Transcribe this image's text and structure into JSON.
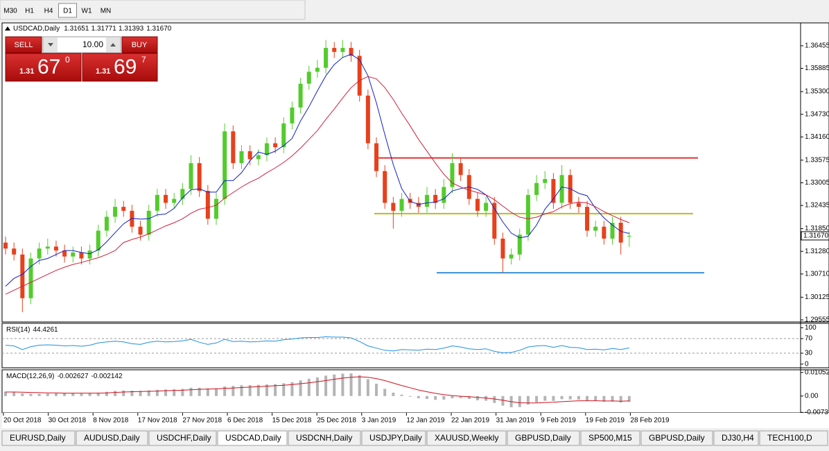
{
  "toolbar": {
    "timeframes": [
      "M30",
      "H1",
      "H4",
      "D1",
      "W1",
      "MN"
    ],
    "active": 3
  },
  "chart_data": {
    "type": "candlestick",
    "symbol": "USDCAD,Daily",
    "open": [
      1.315,
      1.3135,
      1.312,
      1.301,
      1.311,
      1.3135,
      1.314,
      1.313,
      1.3115,
      1.3125,
      1.311,
      1.313,
      1.318,
      1.3215,
      1.324,
      1.323,
      1.319,
      1.317,
      1.323,
      1.327,
      1.325,
      1.326,
      1.3285,
      1.335,
      1.328,
      1.321,
      1.326,
      1.343,
      1.335,
      1.338,
      1.336,
      1.337,
      1.34,
      1.339,
      1.345,
      1.349,
      1.355,
      1.358,
      1.359,
      1.364,
      1.363,
      1.364,
      1.362,
      1.352,
      1.34,
      1.333,
      1.325,
      1.323,
      1.326,
      1.325,
      1.324,
      1.327,
      1.325,
      1.329,
      1.335,
      1.332,
      1.326,
      1.323,
      1.325,
      1.316,
      1.311,
      1.312,
      1.317,
      1.327,
      1.33,
      1.331,
      1.325,
      1.332,
      1.325,
      1.324,
      1.318,
      1.319,
      1.316,
      1.32,
      1.31651
    ],
    "high": [
      1.3165,
      1.315,
      1.3135,
      1.3125,
      1.315,
      1.316,
      1.3155,
      1.3145,
      1.314,
      1.314,
      1.3145,
      1.3195,
      1.323,
      1.326,
      1.3255,
      1.3245,
      1.3205,
      1.3245,
      1.3285,
      1.3285,
      1.3275,
      1.33,
      1.337,
      1.3365,
      1.3295,
      1.3275,
      1.345,
      1.3445,
      1.3395,
      1.3395,
      1.3385,
      1.3415,
      1.3415,
      1.3465,
      1.3505,
      1.3565,
      1.3595,
      1.361,
      1.366,
      1.3655,
      1.366,
      1.3655,
      1.3635,
      1.3535,
      1.3415,
      1.3345,
      1.3265,
      1.3275,
      1.3275,
      1.3265,
      1.329,
      1.3285,
      1.331,
      1.3375,
      1.3365,
      1.3335,
      1.3275,
      1.3265,
      1.3265,
      1.3175,
      1.3135,
      1.3185,
      1.3285,
      1.332,
      1.333,
      1.3325,
      1.3345,
      1.3335,
      1.3265,
      1.3255,
      1.3205,
      1.3205,
      1.3215,
      1.3215,
      1.31771
    ],
    "low": [
      1.312,
      1.3105,
      1.2975,
      1.2995,
      1.3095,
      1.312,
      1.3115,
      1.31,
      1.31,
      1.3095,
      1.3095,
      1.3115,
      1.3165,
      1.32,
      1.3215,
      1.3175,
      1.3155,
      1.3155,
      1.3215,
      1.3235,
      1.3235,
      1.3245,
      1.327,
      1.3265,
      1.3195,
      1.3195,
      1.3245,
      1.3335,
      1.3335,
      1.3345,
      1.3345,
      1.3355,
      1.3375,
      1.3375,
      1.3435,
      1.3475,
      1.3535,
      1.3565,
      1.3575,
      1.3615,
      1.3615,
      1.3605,
      1.3505,
      1.3385,
      1.3315,
      1.3235,
      1.3185,
      1.3215,
      1.3235,
      1.3225,
      1.3225,
      1.3235,
      1.3235,
      1.3275,
      1.3305,
      1.3245,
      1.3215,
      1.3215,
      1.3145,
      1.3075,
      1.3095,
      1.3105,
      1.3155,
      1.3255,
      1.3285,
      1.3235,
      1.3235,
      1.3235,
      1.3225,
      1.3165,
      1.3165,
      1.3145,
      1.3145,
      1.312,
      1.31393
    ],
    "close": [
      1.3135,
      1.312,
      1.301,
      1.311,
      1.3135,
      1.314,
      1.313,
      1.3115,
      1.3125,
      1.311,
      1.313,
      1.318,
      1.3215,
      1.324,
      1.323,
      1.319,
      1.317,
      1.323,
      1.327,
      1.325,
      1.326,
      1.3285,
      1.335,
      1.328,
      1.321,
      1.326,
      1.343,
      1.335,
      1.338,
      1.336,
      1.337,
      1.34,
      1.339,
      1.345,
      1.349,
      1.355,
      1.358,
      1.359,
      1.364,
      1.363,
      1.364,
      1.362,
      1.352,
      1.34,
      1.333,
      1.325,
      1.323,
      1.326,
      1.325,
      1.324,
      1.327,
      1.325,
      1.329,
      1.335,
      1.332,
      1.326,
      1.323,
      1.325,
      1.316,
      1.311,
      1.312,
      1.317,
      1.327,
      1.33,
      1.331,
      1.325,
      1.332,
      1.325,
      1.324,
      1.318,
      1.319,
      1.316,
      1.32,
      1.315,
      1.3167
    ],
    "bull_color": "#52cc2c",
    "bear_color": "#e8401c",
    "ylim": [
      1.2952,
      1.3703
    ],
    "yticks": [
      1.36455,
      1.35885,
      {
        "value": 1.353,
        "label": "1.35300"
      },
      {
        "value": 1.3473,
        "label": "1.34730"
      },
      {
        "value": 1.3416,
        "label": "1.34160"
      },
      1.33575,
      1.33005,
      1.32435,
      {
        "value": 1.3185,
        "label": "1.31850"
      },
      {
        "value": 1.3128,
        "label": "1.31280"
      },
      {
        "value": 1.3071,
        "label": "1.30710"
      },
      1.30125,
      1.29555
    ],
    "price_label": {
      "value": 1.3167,
      "label": "1.31670"
    },
    "ma": [
      {
        "color": "#1020c8",
        "values": [
          1.304,
          1.306,
          1.307,
          1.309,
          1.3105,
          1.311,
          1.312,
          1.313,
          1.313,
          1.3125,
          1.3122,
          1.3132,
          1.3152,
          1.3175,
          1.3197,
          1.3211,
          1.3209,
          1.321,
          1.322,
          1.3222,
          1.3236,
          1.3263,
          1.3283,
          1.3285,
          1.3277,
          1.3277,
          1.3306,
          1.3306,
          1.3326,
          1.3356,
          1.3378,
          1.3372,
          1.338,
          1.3394,
          1.3412,
          1.3456,
          1.3492,
          1.3532,
          1.357,
          1.3598,
          1.3616,
          1.3624,
          1.361,
          1.357,
          1.3502,
          1.3422,
          1.3346,
          1.3286,
          1.3254,
          1.3246,
          1.325,
          1.3252,
          1.326,
          1.328,
          1.3286,
          1.329,
          1.3284,
          1.327,
          1.3236,
          1.3202,
          1.3174,
          1.3162,
          1.3166,
          1.3194,
          1.3234,
          1.326,
          1.329,
          1.3286,
          1.3274,
          1.3268,
          1.3236,
          1.3212,
          1.3194,
          1.3178,
          1.3173
        ]
      },
      {
        "color": "#d0203c",
        "values": [
          1.302,
          1.303,
          1.304,
          1.305,
          1.306,
          1.307,
          1.308,
          1.3088,
          1.3095,
          1.31,
          1.3106,
          1.3112,
          1.312,
          1.313,
          1.315,
          1.3158,
          1.3164,
          1.3172,
          1.3182,
          1.3192,
          1.32,
          1.321,
          1.3224,
          1.3234,
          1.3238,
          1.3244,
          1.3262,
          1.3276,
          1.329,
          1.3302,
          1.3312,
          1.3326,
          1.3338,
          1.3352,
          1.3368,
          1.3388,
          1.341,
          1.3432,
          1.346,
          1.3486,
          1.3514,
          1.354,
          1.3558,
          1.3568,
          1.3562,
          1.354,
          1.351,
          1.3476,
          1.3444,
          1.341,
          1.338,
          1.335,
          1.3322,
          1.33,
          1.329,
          1.3282,
          1.3276,
          1.327,
          1.3258,
          1.3242,
          1.3226,
          1.3214,
          1.321,
          1.3214,
          1.3222,
          1.3228,
          1.324,
          1.3248,
          1.3252,
          1.325,
          1.324,
          1.3228,
          1.3218,
          1.3208,
          1.32
        ]
      }
    ],
    "levels": [
      {
        "value": 1.3363,
        "color": "#e83030"
      },
      {
        "value": 1.3223,
        "color": "#b4c018"
      },
      {
        "value": 1.3074,
        "color": "#3a8ed8"
      }
    ],
    "x_labels": [
      "20 Oct 2018",
      "30 Oct 2018",
      "8 Nov 2018",
      "17 Nov 2018",
      "27 Nov 2018",
      "6 Dec 2018",
      "15 Dec 2018",
      "25 Dec 2018",
      "3 Jan 2019",
      "12 Jan 2019",
      "22 Jan 2019",
      "31 Jan 2019",
      "9 Feb 2019",
      "19 Feb 2019",
      "28 Feb 2019"
    ],
    "trade_panel": {
      "sell": "SELL",
      "lot": "10.00",
      "buy": "BUY",
      "sell_price": [
        "1.31",
        "67",
        "0"
      ],
      "buy_price": [
        "1.31",
        "69",
        "7"
      ]
    },
    "rsi": {
      "name": "RSI(14)",
      "color": "#1e90e0",
      "ylim": [
        -10,
        112
      ],
      "yticks": [
        100,
        70,
        30,
        0
      ],
      "levels": [
        70,
        30
      ],
      "values": [
        52,
        50,
        40,
        48,
        52,
        53,
        52,
        50,
        51,
        49,
        52,
        58,
        61,
        63,
        61,
        56,
        54,
        60,
        63,
        61,
        62,
        64,
        68,
        60,
        54,
        58,
        68,
        62,
        63,
        61,
        62,
        64,
        63,
        67,
        69,
        72,
        73,
        73,
        75,
        74,
        74,
        72,
        62,
        50,
        44,
        38,
        36,
        40,
        39,
        38,
        41,
        40,
        44,
        50,
        47,
        42,
        40,
        42,
        35,
        31,
        32,
        38,
        47,
        50,
        51,
        46,
        51,
        46,
        45,
        40,
        41,
        39,
        43,
        40,
        44.4261
      ]
    },
    "macd": {
      "name": "MACD(12,26,9)",
      "bar_color": "#b4b4b4",
      "signal_color": "#d0101c",
      "ylim": [
        -0.0075,
        0.0117
      ],
      "yticks": [
        0.010525,
        {
          "value": 0,
          "label": "0.00"
        },
        -0.0073
      ],
      "histogram": [
        0.002,
        0.0018,
        0.0012,
        0.001,
        0.001,
        0.0011,
        0.0012,
        0.0012,
        0.0012,
        0.0011,
        0.0012,
        0.0015,
        0.0019,
        0.0023,
        0.0025,
        0.0024,
        0.0023,
        0.0025,
        0.0028,
        0.0029,
        0.003,
        0.0032,
        0.0037,
        0.0037,
        0.0034,
        0.0034,
        0.0043,
        0.0045,
        0.0048,
        0.0049,
        0.005,
        0.0052,
        0.0053,
        0.0057,
        0.0062,
        0.007,
        0.0077,
        0.0083,
        0.0091,
        0.0096,
        0.01,
        0.0101,
        0.0093,
        0.0075,
        0.0055,
        0.0032,
        0.0015,
        0.0006,
        -0.0003,
        -0.001,
        -0.0013,
        -0.0017,
        -0.0016,
        -0.001,
        -0.0009,
        -0.0013,
        -0.0019,
        -0.0021,
        -0.0031,
        -0.0043,
        -0.005,
        -0.0049,
        -0.0038,
        -0.0028,
        -0.0021,
        -0.0022,
        -0.0014,
        -0.0015,
        -0.0016,
        -0.0021,
        -0.0022,
        -0.0026,
        -0.0025,
        -0.0029,
        -0.002627
      ],
      "signal": [
        0.0018,
        0.0018,
        0.0017,
        0.0016,
        0.0015,
        0.0014,
        0.0014,
        0.0013,
        0.0013,
        0.0013,
        0.0013,
        0.0013,
        0.0014,
        0.0016,
        0.0018,
        0.0019,
        0.002,
        0.0021,
        0.0022,
        0.0024,
        0.0025,
        0.0026,
        0.0028,
        0.003,
        0.0031,
        0.0032,
        0.0034,
        0.0036,
        0.0038,
        0.004,
        0.0042,
        0.0044,
        0.0046,
        0.0048,
        0.0051,
        0.0055,
        0.0059,
        0.0064,
        0.0069,
        0.0075,
        0.008,
        0.0084,
        0.0086,
        0.0084,
        0.0078,
        0.0069,
        0.0058,
        0.0047,
        0.0037,
        0.0027,
        0.0019,
        0.0012,
        0.0006,
        0.0002,
        -0.0001,
        -0.0003,
        -0.0006,
        -0.0009,
        -0.0013,
        -0.0019,
        -0.0025,
        -0.003,
        -0.0031,
        -0.0031,
        -0.0029,
        -0.0028,
        -0.0025,
        -0.0023,
        -0.0021,
        -0.0021,
        -0.0021,
        -0.0022,
        -0.0022,
        -0.0023,
        -0.002142
      ]
    }
  },
  "tabs": {
    "items": [
      "EURUSD,Daily",
      "AUDUSD,Daily",
      "USDCHF,Daily",
      "USDCAD,Daily",
      "USDCNH,Daily",
      "USDJPY,Daily",
      "XAUUSD,Weekly",
      "GBPUSD,Daily",
      "SP500,M15",
      "GBPUSD,Daily",
      "DJ30,H4",
      "TECH100,D"
    ],
    "active": 3
  }
}
